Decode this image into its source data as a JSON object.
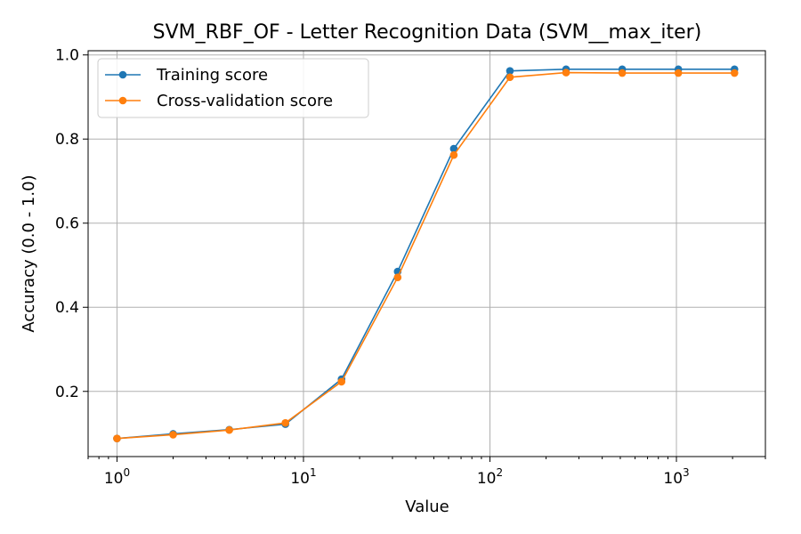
{
  "chart_data": {
    "type": "line",
    "title": "SVM_RBF_OF - Letter Recognition Data (SVM__max_iter)",
    "xlabel": "Value",
    "ylabel": "Accuracy (0.0 - 1.0)",
    "xscale": "log",
    "xlim": [
      0.7,
      3000
    ],
    "ylim": [
      0.045,
      1.01
    ],
    "grid": true,
    "legend_position": "top-left",
    "x": [
      1,
      2,
      4,
      8,
      16,
      32,
      64,
      128,
      256,
      512,
      1024,
      2048
    ],
    "x_ticks": [
      {
        "value": 1,
        "base": "10",
        "exp": "0"
      },
      {
        "value": 10,
        "base": "10",
        "exp": "1"
      },
      {
        "value": 100,
        "base": "10",
        "exp": "2"
      },
      {
        "value": 1000,
        "base": "10",
        "exp": "3"
      }
    ],
    "y_ticks": [
      {
        "value": 0.2,
        "label": "0.2"
      },
      {
        "value": 0.4,
        "label": "0.4"
      },
      {
        "value": 0.6,
        "label": "0.6"
      },
      {
        "value": 0.8,
        "label": "0.8"
      },
      {
        "value": 1.0,
        "label": "1.0"
      }
    ],
    "series": [
      {
        "name": "Training score",
        "color": "#1f77b4",
        "values": [
          0.088,
          0.099,
          0.109,
          0.122,
          0.229,
          0.485,
          0.777,
          0.962,
          0.966,
          0.966,
          0.966,
          0.966
        ]
      },
      {
        "name": "Cross-validation score",
        "color": "#ff7f0e",
        "values": [
          0.088,
          0.097,
          0.108,
          0.125,
          0.223,
          0.471,
          0.762,
          0.947,
          0.958,
          0.957,
          0.957,
          0.957
        ]
      }
    ]
  }
}
